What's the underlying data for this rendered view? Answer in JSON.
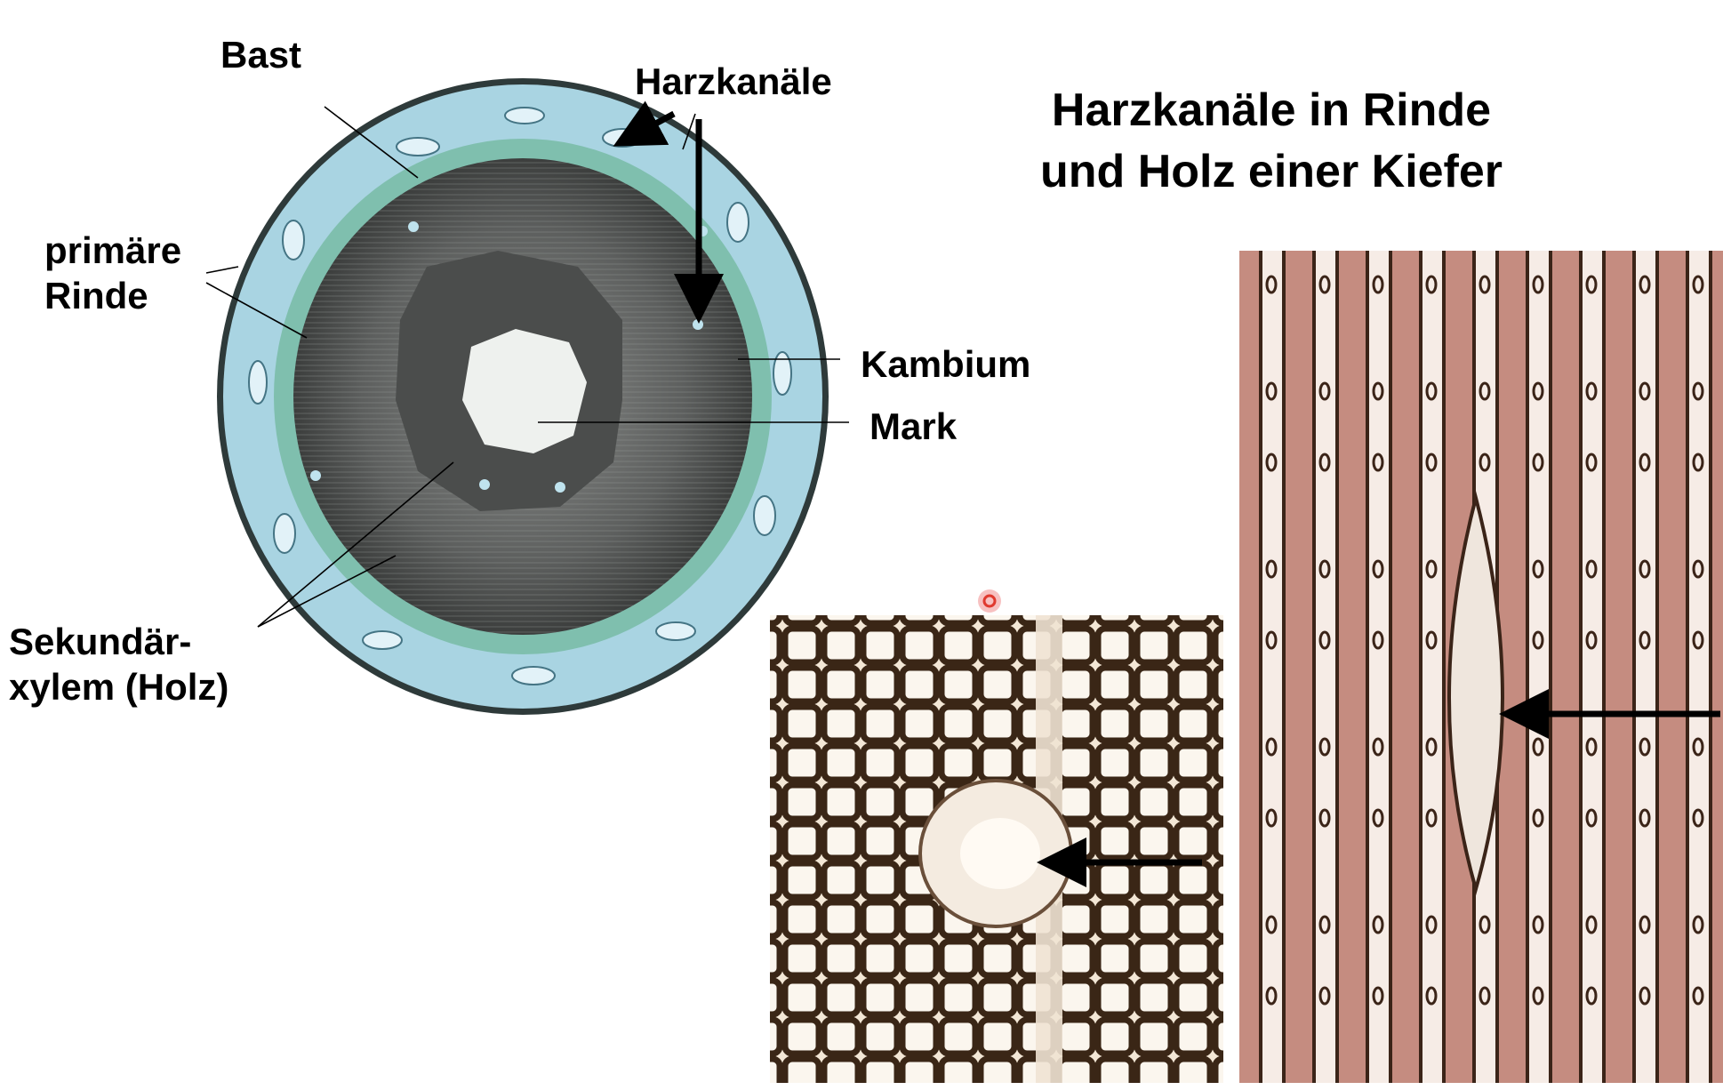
{
  "title": {
    "line1": "Harzkanäle in Rinde",
    "line2": "und Holz einer Kiefer"
  },
  "labels": {
    "bast": "Bast",
    "harzkanaele": "Harzkanäle",
    "primaere_rinde_line1": "primäre",
    "primaere_rinde_line2": "Rinde",
    "kambium": "Kambium",
    "mark": "Mark",
    "sekundaer_line1": "Sekundär-",
    "sekundaer_line2": "xylem (Holz)"
  },
  "colors": {
    "rinde": "#a9d4e2",
    "kambium_ring": "#7fbfae",
    "holz": "#5a5c5b",
    "mark": "#eef1ee",
    "micrograph_bg": "#f3e7d6",
    "micrograph_cell_wall": "#3a2616",
    "longitudinal_bg": "#f6ece6",
    "longitudinal_tracheid": "#c58c80",
    "arrow": "#000000",
    "cursor_dot": "#e03a2f"
  }
}
